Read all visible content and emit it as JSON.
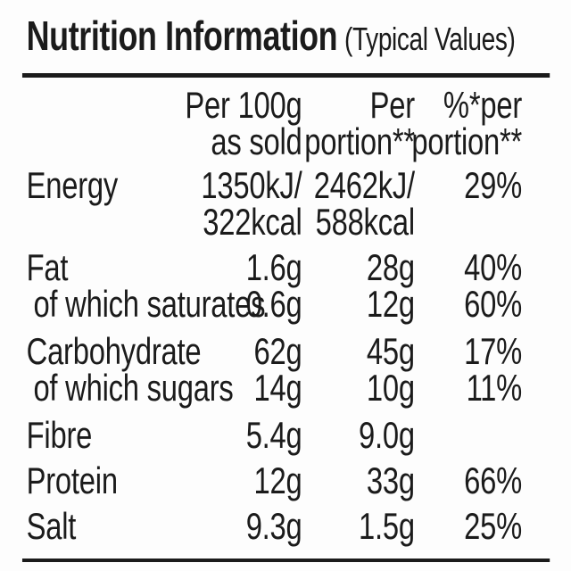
{
  "label": {
    "title": "Nutrition Information",
    "title_suffix": "(Typical Values)",
    "header": {
      "col_per100": [
        "Per 100g",
        "as sold"
      ],
      "col_portion": [
        "Per",
        "portion**"
      ],
      "col_percent": [
        "%*per",
        "portion**"
      ]
    },
    "rows": [
      {
        "name": "Energy",
        "per100": "1350kJ/",
        "portion": "2462kJ/",
        "percent": "29%"
      },
      {
        "name": "",
        "per100": "322kcal",
        "portion": "588kcal",
        "percent": ""
      },
      {
        "name": "Fat",
        "per100": "1.6g",
        "portion": "28g",
        "percent": "40%"
      },
      {
        "name": "of which saturates",
        "per100": "0.6g",
        "portion": "12g",
        "percent": "60%"
      },
      {
        "name": "Carbohydrate",
        "per100": "62g",
        "portion": "45g",
        "percent": "17%"
      },
      {
        "name": "of which sugars",
        "per100": "14g",
        "portion": "10g",
        "percent": "11%"
      },
      {
        "name": "Fibre",
        "per100": "5.4g",
        "portion": "9.0g",
        "percent": ""
      },
      {
        "name": "Protein",
        "per100": "12g",
        "portion": "33g",
        "percent": "66%"
      },
      {
        "name": "Salt",
        "per100": "9.3g",
        "portion": "1.5g",
        "percent": "25%"
      }
    ],
    "colors": {
      "text": "#1b1b1b",
      "background": "#fdfdfd"
    }
  }
}
